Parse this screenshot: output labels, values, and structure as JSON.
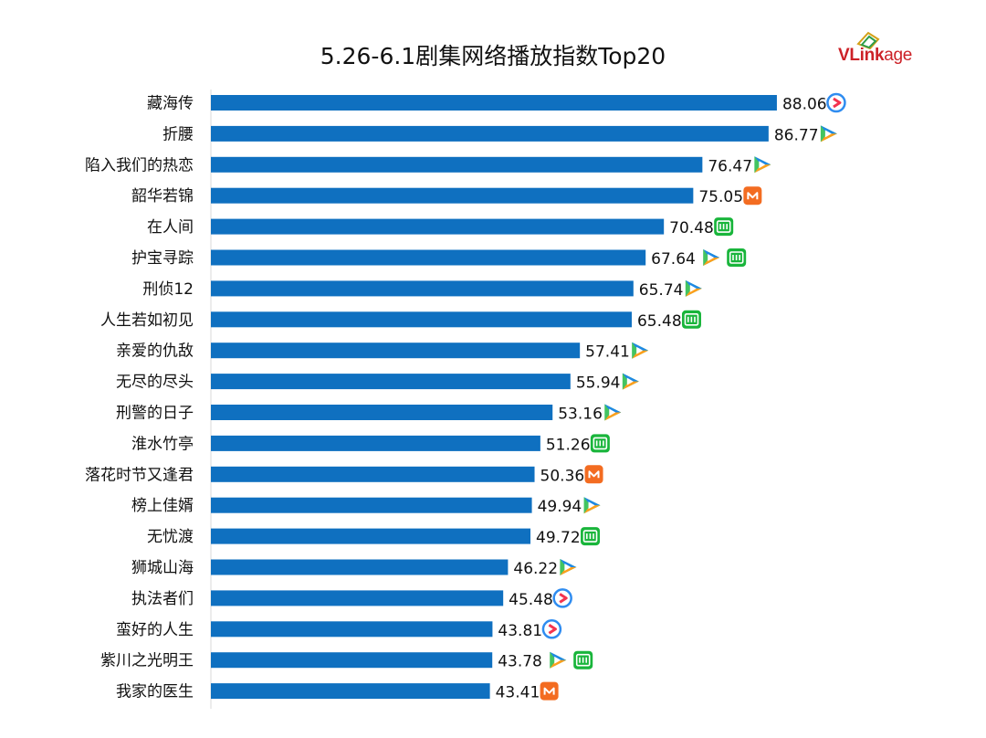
{
  "header": {
    "title": "5.26-6.1剧集网络播放指数Top20",
    "brand": {
      "v": "V",
      "link": "Link",
      "age": "age",
      "color": "#cc2127"
    }
  },
  "colors": {
    "bar": "#0f70c0",
    "tencent_blue": "#1e88e5",
    "tencent_green": "#43c461",
    "tencent_orange": "#ff9f1c",
    "youku_blue": "#2f8cf0",
    "youku_red": "#f4334f",
    "mango_orange": "#f36c21",
    "iqiyi_green": "#19b53b"
  },
  "chart_data": {
    "type": "bar",
    "orientation": "horizontal",
    "title": "5.26-6.1剧集网络播放指数Top20",
    "categories": [
      "藏海传",
      "折腰",
      "陷入我们的热恋",
      "韶华若锦",
      "在人间",
      "护宝寻踪",
      "刑侦12",
      "人生若如初见",
      "亲爱的仇敌",
      "无尽的尽头",
      "刑警的日子",
      "淮水竹亭",
      "落花时节又逢君",
      "榜上佳婿",
      "无忧渡",
      "狮城山海",
      "执法者们",
      "蛮好的人生",
      "紫川之光明王",
      "我家的医生"
    ],
    "values": [
      88.06,
      86.77,
      76.47,
      75.05,
      70.48,
      67.64,
      65.74,
      65.48,
      57.41,
      55.94,
      53.16,
      51.26,
      50.36,
      49.94,
      49.72,
      46.22,
      45.48,
      43.81,
      43.78,
      43.41
    ],
    "value_labels": [
      "88.06",
      "86.77",
      "76.47",
      "75.05",
      "70.48",
      "67.64",
      "65.74",
      "65.48",
      "57.41",
      "55.94",
      "53.16",
      "51.26",
      "50.36",
      "49.94",
      "49.72",
      "46.22",
      "45.48",
      "43.81",
      "43.78",
      "43.41"
    ],
    "platforms": [
      [
        "youku"
      ],
      [
        "tencent"
      ],
      [
        "tencent"
      ],
      [
        "mango"
      ],
      [
        "iqiyi"
      ],
      [
        "tencent",
        "iqiyi"
      ],
      [
        "tencent"
      ],
      [
        "iqiyi"
      ],
      [
        "tencent"
      ],
      [
        "tencent"
      ],
      [
        "tencent"
      ],
      [
        "iqiyi"
      ],
      [
        "mango"
      ],
      [
        "tencent"
      ],
      [
        "iqiyi"
      ],
      [
        "tencent"
      ],
      [
        "youku"
      ],
      [
        "youku"
      ],
      [
        "tencent",
        "iqiyi"
      ],
      [
        "mango"
      ]
    ],
    "xlim": [
      0,
      100
    ],
    "grid": false,
    "legend": "none"
  }
}
